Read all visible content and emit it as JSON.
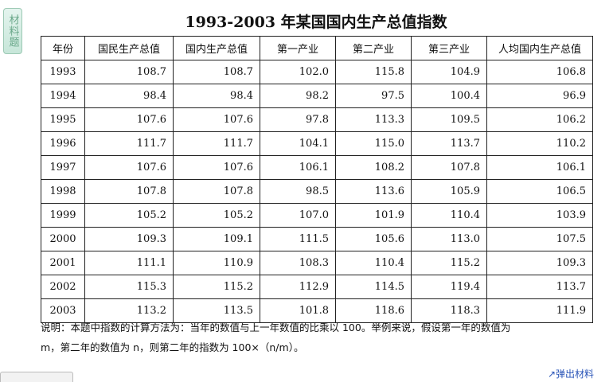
{
  "side_tab": {
    "label": "材料题"
  },
  "title": "1993-2003 年某国国内生产总值指数",
  "table": {
    "headers": [
      "年份",
      "国民生产总值",
      "国内生产总值",
      "第一产业",
      "第二产业",
      "第三产业",
      "人均国内生产总值"
    ],
    "rows": [
      [
        "1993",
        "108.7",
        "108.7",
        "102.0",
        "115.8",
        "104.9",
        "106.8"
      ],
      [
        "1994",
        "98.4",
        "98.4",
        "98.2",
        "97.5",
        "100.4",
        "96.9"
      ],
      [
        "1995",
        "107.6",
        "107.6",
        "97.8",
        "113.3",
        "109.5",
        "106.2"
      ],
      [
        "1996",
        "111.7",
        "111.7",
        "104.1",
        "115.0",
        "113.7",
        "110.2"
      ],
      [
        "1997",
        "107.6",
        "107.6",
        "106.1",
        "108.2",
        "107.8",
        "106.1"
      ],
      [
        "1998",
        "107.8",
        "107.8",
        "98.5",
        "113.6",
        "105.9",
        "106.5"
      ],
      [
        "1999",
        "105.2",
        "105.2",
        "107.0",
        "101.9",
        "110.4",
        "103.9"
      ],
      [
        "2000",
        "109.3",
        "109.1",
        "111.5",
        "105.6",
        "113.0",
        "107.5"
      ],
      [
        "2001",
        "111.1",
        "110.9",
        "108.3",
        "110.4",
        "115.2",
        "109.3"
      ],
      [
        "2002",
        "115.3",
        "115.2",
        "112.9",
        "114.5",
        "119.4",
        "113.7"
      ],
      [
        "2003",
        "113.2",
        "113.5",
        "101.8",
        "118.6",
        "118.3",
        "111.9"
      ]
    ]
  },
  "note": {
    "line1": "说明：本题中指数的计算方法为：当年的数值与上一年数值的比乘以 100。举例来说，假设第一年的数值为",
    "line2": "m，第二年的数值为 n，则第二年的指数为 100×（n/m）。"
  },
  "popup_link": {
    "label": "↗弹出材料"
  }
}
